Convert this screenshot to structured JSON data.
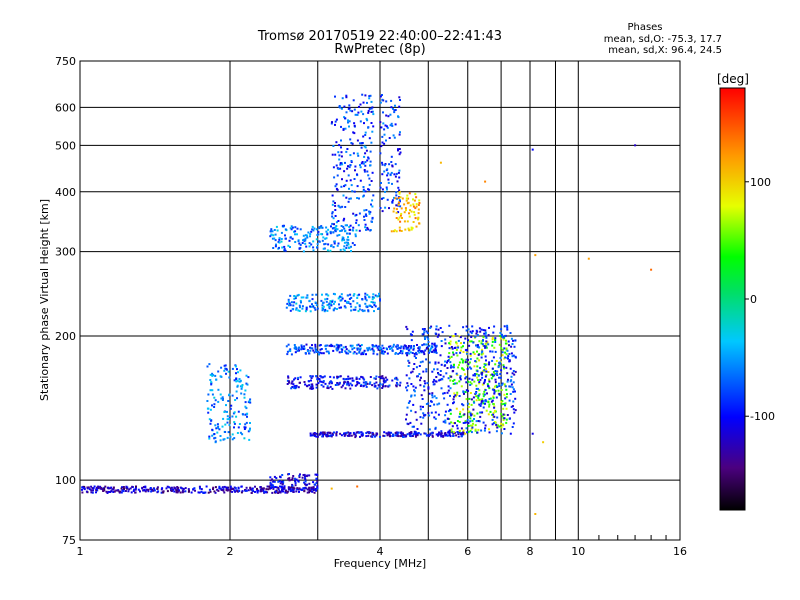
{
  "chart_data": {
    "type": "scatter",
    "title": "Tromsø 20170519 22:40:00–22:41:43",
    "subtitle": "RwPretec (8p)",
    "phases": {
      "heading": "Phases",
      "o_line": "mean, sd,O: -75.3, 17.7",
      "x_line": "mean, sd,X:  96.4, 24.5"
    },
    "xlabel": "Frequency [MHz]",
    "ylabel": "Stationary phase Virtual Height [km]",
    "x_scale": "log",
    "y_scale": "log",
    "xlim": [
      1,
      16
    ],
    "ylim": [
      75,
      750
    ],
    "x_ticks": [
      1,
      2,
      4,
      6,
      8,
      10,
      16
    ],
    "y_ticks": [
      75,
      100,
      200,
      300,
      400,
      500,
      600,
      750
    ],
    "x_grid": [
      2,
      3,
      4,
      5,
      6,
      7,
      8,
      9,
      10
    ],
    "y_grid": [
      100,
      200,
      300,
      400,
      500,
      600
    ],
    "grid": true,
    "colorbar": {
      "label": "[deg]",
      "range": [
        -180,
        180
      ],
      "ticks": [
        100,
        0,
        -100
      ],
      "position": "right"
    },
    "clusters": [
      {
        "desc": "E layer",
        "f": [
          1.0,
          3.0
        ],
        "h": [
          94,
          97
        ],
        "phase": -120
      },
      {
        "desc": "E layer tail",
        "f": [
          2.4,
          3.0
        ],
        "h": [
          96,
          103
        ],
        "phase": -110
      },
      {
        "desc": "Sporadic low",
        "f": [
          1.8,
          2.2
        ],
        "h": [
          120,
          175
        ],
        "phase": -60
      },
      {
        "desc": "F trace 125km",
        "f": [
          2.9,
          5.9
        ],
        "h": [
          123,
          126
        ],
        "phase": -110
      },
      {
        "desc": "F trace 160km",
        "f": [
          2.6,
          4.4
        ],
        "h": [
          155,
          165
        ],
        "phase": -100
      },
      {
        "desc": "F trace 185km",
        "f": [
          2.6,
          5.2
        ],
        "h": [
          183,
          192
        ],
        "phase": -80
      },
      {
        "desc": "F trace 230km",
        "f": [
          2.6,
          4.0
        ],
        "h": [
          225,
          245
        ],
        "phase": -60
      },
      {
        "desc": "F2 O-mode base",
        "f": [
          2.4,
          3.6
        ],
        "h": [
          300,
          340
        ],
        "phase": -60
      },
      {
        "desc": "F2 O-mode column",
        "f": [
          3.2,
          3.9
        ],
        "h": [
          330,
          640
        ],
        "phase": -80
      },
      {
        "desc": "F2 X-mode column",
        "f": [
          4.0,
          4.4
        ],
        "h": [
          360,
          640
        ],
        "phase": -85
      },
      {
        "desc": "F2 X-mode cusp",
        "f": [
          4.2,
          4.8
        ],
        "h": [
          330,
          400
        ],
        "phase": 110
      },
      {
        "desc": "Spread F high freq",
        "f": [
          5.5,
          7.2
        ],
        "h": [
          125,
          200
        ],
        "phase": 60
      },
      {
        "desc": "Spread F scattered",
        "f": [
          4.5,
          7.5
        ],
        "h": [
          125,
          210
        ],
        "phase": -90
      }
    ],
    "isolated_points": [
      {
        "f": 8.1,
        "h": 490,
        "phase": -100
      },
      {
        "f": 13.0,
        "h": 500,
        "phase": -120
      },
      {
        "f": 6.5,
        "h": 420,
        "phase": 130
      },
      {
        "f": 5.3,
        "h": 460,
        "phase": 110
      },
      {
        "f": 8.2,
        "h": 295,
        "phase": 120
      },
      {
        "f": 10.5,
        "h": 290,
        "phase": 120
      },
      {
        "f": 14.0,
        "h": 275,
        "phase": 140
      },
      {
        "f": 8.2,
        "h": 85,
        "phase": 110
      },
      {
        "f": 8.1,
        "h": 125,
        "phase": -110
      },
      {
        "f": 8.5,
        "h": 120,
        "phase": 100
      },
      {
        "f": 3.2,
        "h": 96,
        "phase": 110
      },
      {
        "f": 3.6,
        "h": 97,
        "phase": 140
      }
    ]
  }
}
